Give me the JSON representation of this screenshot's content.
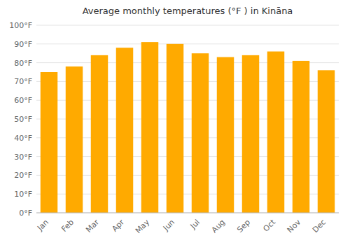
{
  "chart_data": {
    "type": "bar",
    "title": "Average monthly temperatures (°F ) in Kināna",
    "categories": [
      "Jan",
      "Feb",
      "Mar",
      "Apr",
      "May",
      "Jun",
      "Jul",
      "Aug",
      "Sep",
      "Oct",
      "Nov",
      "Dec"
    ],
    "values": [
      75,
      78,
      84,
      88,
      91,
      90,
      85,
      83,
      84,
      86,
      81,
      76
    ],
    "color": "#FFAA00",
    "ylim": [
      0,
      100
    ],
    "yticks": [
      {
        "value": 0,
        "label": "0°F"
      },
      {
        "value": 10,
        "label": "10°F"
      },
      {
        "value": 20,
        "label": "20°F"
      },
      {
        "value": 30,
        "label": "30°F"
      },
      {
        "value": 40,
        "label": "40°F"
      },
      {
        "value": 50,
        "label": "50°F"
      },
      {
        "value": 60,
        "label": "60°F"
      },
      {
        "value": 70,
        "label": "70°F"
      },
      {
        "value": 80,
        "label": "80°F"
      },
      {
        "value": 90,
        "label": "90°F"
      },
      {
        "value": 100,
        "label": "100°F"
      }
    ],
    "grid": true
  }
}
